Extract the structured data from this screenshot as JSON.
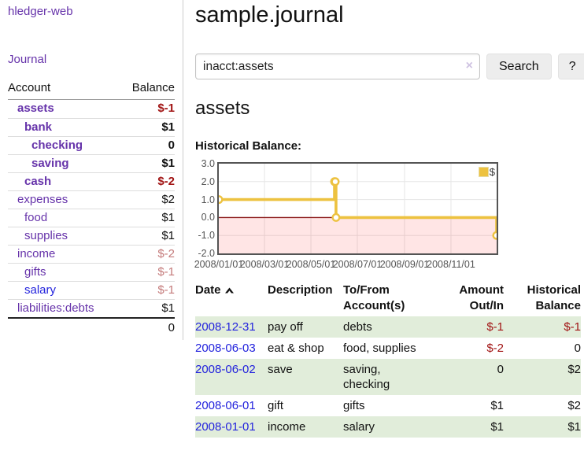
{
  "sidebar": {
    "app_title": "hledger-web",
    "journal_link": "Journal",
    "account_header": "Account",
    "balance_header": "Balance",
    "accounts": [
      {
        "name": "assets",
        "indent": 1,
        "bold": true,
        "balance": "$-1",
        "balance_style": "negative",
        "link_color": "purple"
      },
      {
        "name": "bank",
        "indent": 2,
        "bold": true,
        "balance": "$1",
        "balance_style": "normal",
        "link_color": "purple"
      },
      {
        "name": "checking",
        "indent": 3,
        "bold": true,
        "balance": "0",
        "balance_style": "normal",
        "link_color": "purple"
      },
      {
        "name": "saving",
        "indent": 3,
        "bold": true,
        "balance": "$1",
        "balance_style": "normal",
        "link_color": "purple"
      },
      {
        "name": "cash",
        "indent": 2,
        "bold": true,
        "balance": "$-2",
        "balance_style": "negative",
        "link_color": "purple"
      },
      {
        "name": "expenses",
        "indent": 1,
        "bold": false,
        "balance": "$2",
        "balance_style": "normal",
        "link_color": "purple"
      },
      {
        "name": "food",
        "indent": 2,
        "bold": false,
        "balance": "$1",
        "balance_style": "normal",
        "link_color": "purple"
      },
      {
        "name": "supplies",
        "indent": 2,
        "bold": false,
        "balance": "$1",
        "balance_style": "normal",
        "link_color": "purple"
      },
      {
        "name": "income",
        "indent": 1,
        "bold": false,
        "balance": "$-2",
        "balance_style": "negative-light",
        "link_color": "purple"
      },
      {
        "name": "gifts",
        "indent": 2,
        "bold": false,
        "balance": "$-1",
        "balance_style": "negative-light",
        "link_color": "purple"
      },
      {
        "name": "salary",
        "indent": 2,
        "bold": false,
        "balance": "$-1",
        "balance_style": "negative-light",
        "link_color": "blue"
      },
      {
        "name": "liabilities:debts",
        "indent": 1,
        "bold": false,
        "balance": "$1",
        "balance_style": "normal",
        "link_color": "purple"
      }
    ],
    "total": "0"
  },
  "main": {
    "title": "sample.journal",
    "search": {
      "value": "inacct:assets",
      "clear_icon": "×",
      "search_button": "Search",
      "help_button": "?"
    },
    "account_heading": "assets",
    "chart_title": "Historical Balance:"
  },
  "chart_data": {
    "type": "line",
    "step": true,
    "title": "Historical Balance",
    "series": [
      {
        "name": "$",
        "color": "#edc240",
        "points": [
          {
            "date": "2008-01-01",
            "value": 1
          },
          {
            "date": "2008-06-01",
            "value": 2
          },
          {
            "date": "2008-06-02",
            "value": 2
          },
          {
            "date": "2008-06-03",
            "value": 0
          },
          {
            "date": "2008-12-31",
            "value": -1
          }
        ]
      }
    ],
    "xlim": [
      "2008-01-01",
      "2008-12-31"
    ],
    "ylim": [
      -2,
      3
    ],
    "yticks": [
      "3.0",
      "2.0",
      "1.0",
      "0.0",
      "-1.0",
      "-2.0"
    ],
    "xticks": [
      "2008/01/01",
      "2008/03/01",
      "2008/05/01",
      "2008/07/01",
      "2008/09/01",
      "2008/11/01"
    ],
    "legend": {
      "label": "$",
      "position": "top-right"
    },
    "grid": true,
    "gridline_color": "#e6e6e6",
    "border_color": "#545454",
    "negative_region_fill": "rgba(255,0,0,0.10)",
    "zero_line_color": "#8b1a1a",
    "marker_fill": "#ffffff"
  },
  "register": {
    "columns": [
      "Date",
      "Description",
      "To/From Account(s)",
      "Amount Out/In",
      "Historical Balance"
    ],
    "sort_icon_name": "chevron-up-icon",
    "rows": [
      {
        "date": "2008-12-31",
        "description": "pay off",
        "accounts": "debts",
        "amount": "$-1",
        "amount_negative": true,
        "balance": "$-1",
        "balance_negative": true
      },
      {
        "date": "2008-06-03",
        "description": "eat & shop",
        "accounts": "food, supplies",
        "amount": "$-2",
        "amount_negative": true,
        "balance": "0",
        "balance_negative": false
      },
      {
        "date": "2008-06-02",
        "description": "save",
        "accounts": "saving, checking",
        "amount": "0",
        "amount_negative": false,
        "balance": "$2",
        "balance_negative": false
      },
      {
        "date": "2008-06-01",
        "description": "gift",
        "accounts": "gifts",
        "amount": "$1",
        "amount_negative": false,
        "balance": "$2",
        "balance_negative": false
      },
      {
        "date": "2008-01-01",
        "description": "income",
        "accounts": "salary",
        "amount": "$1",
        "amount_negative": false,
        "balance": "$1",
        "balance_negative": false
      }
    ]
  },
  "colors": {
    "link_purple": "#6633aa",
    "link_blue": "#2323dd",
    "negative_strong": "#a11414",
    "negative_light": "#c47a7a",
    "row_green": "#e1edda",
    "accent_gold": "#edc240"
  }
}
